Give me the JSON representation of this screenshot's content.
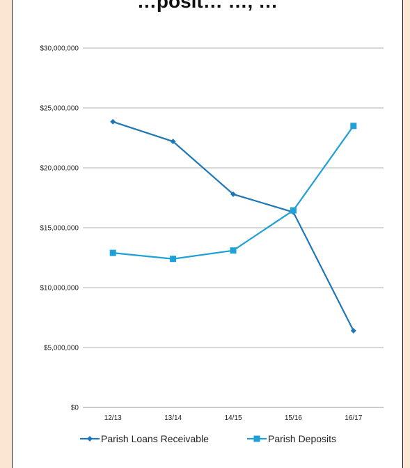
{
  "title": "…posit… …, …",
  "chart_data": {
    "type": "line",
    "categories": [
      "12/13",
      "13/14",
      "14/15",
      "15/16",
      "16/17"
    ],
    "series": [
      {
        "name": "Parish Loans Receivable",
        "values": [
          23850000,
          22200000,
          17800000,
          16300000,
          6400000
        ],
        "color": "#1f77b8",
        "marker": "diamond"
      },
      {
        "name": "Parish Deposits",
        "values": [
          12900000,
          12400000,
          13100000,
          16450000,
          23500000
        ],
        "color": "#1fa0d6",
        "marker": "square"
      }
    ],
    "ylim": [
      0,
      30000000
    ],
    "yticks": [
      "$0",
      "$5,000,000",
      "$10,000,000",
      "$15,000,000",
      "$20,000,000",
      "$25,000,000",
      "$30,000,000"
    ],
    "grid": true,
    "legend": "bottom",
    "xlabel": "",
    "ylabel": ""
  }
}
